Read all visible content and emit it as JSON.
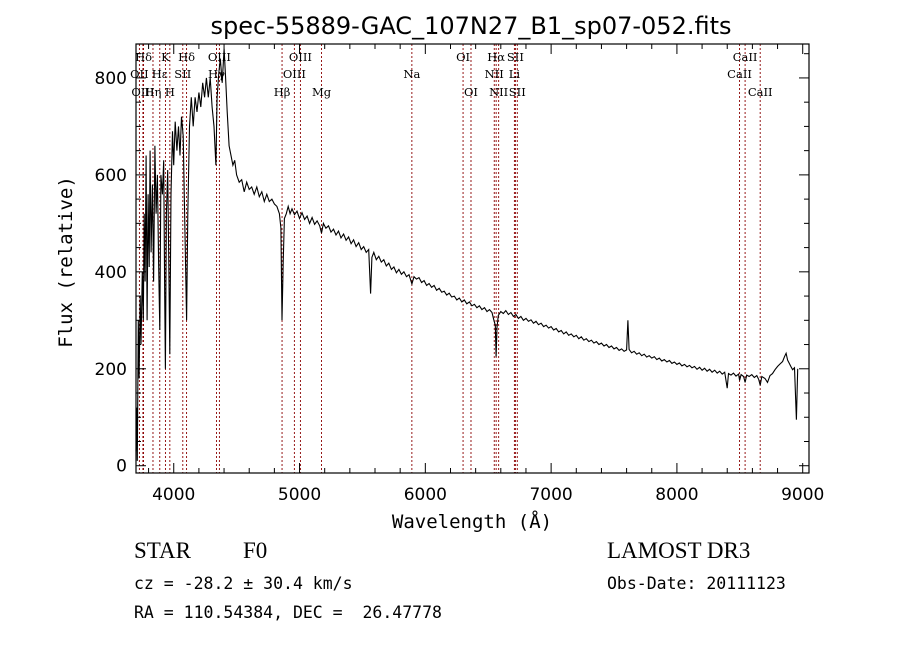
{
  "chart_data": {
    "type": "line",
    "title": "spec-55889-GAC_107N27_B1_sp07-052.fits",
    "xlabel": "Wavelength (Å)",
    "ylabel": "Flux (relative)",
    "xlim": [
      3700,
      9050
    ],
    "ylim": [
      -15,
      870
    ],
    "xticks": [
      4000,
      5000,
      6000,
      7000,
      8000,
      9000
    ],
    "yticks": [
      0,
      200,
      400,
      600,
      800
    ],
    "line_color": "#8b0000",
    "series_color": "#000000",
    "spectral_lines": [
      {
        "label": "Hδ",
        "wl": 3760,
        "row": 0
      },
      {
        "label": "OII",
        "wl": 3727,
        "row": 1
      },
      {
        "label": "OIII",
        "wl": 3755,
        "row": 2
      },
      {
        "label": "K",
        "wl": 3934,
        "row": 0
      },
      {
        "label": "Hε",
        "wl": 3889,
        "row": 1
      },
      {
        "label": "Hη",
        "wl": 3835,
        "row": 2
      },
      {
        "label": "Hδ",
        "wl": 4102,
        "row": 0
      },
      {
        "label": "SII",
        "wl": 4072,
        "row": 1
      },
      {
        "label": "H",
        "wl": 3969,
        "row": 2
      },
      {
        "label": "OIII",
        "wl": 4363,
        "row": 0
      },
      {
        "label": "Hγ",
        "wl": 4340,
        "row": 1
      },
      {
        "label": "OIII",
        "wl": 5007,
        "row": 0
      },
      {
        "label": "OIII",
        "wl": 4959,
        "row": 1
      },
      {
        "label": "Hβ",
        "wl": 4861,
        "row": 2
      },
      {
        "label": "Mg",
        "wl": 5175,
        "row": 2
      },
      {
        "label": "Na",
        "wl": 5893,
        "row": 1
      },
      {
        "label": "OI",
        "wl": 6300,
        "row": 0
      },
      {
        "label": "OI",
        "wl": 6363,
        "row": 2
      },
      {
        "label": "Hα",
        "wl": 6563,
        "row": 0
      },
      {
        "label": "NII",
        "wl": 6548,
        "row": 1
      },
      {
        "label": "NII",
        "wl": 6583,
        "row": 2
      },
      {
        "label": "SII",
        "wl": 6716,
        "row": 0
      },
      {
        "label": "Li",
        "wl": 6708,
        "row": 1
      },
      {
        "label": "SII",
        "wl": 6731,
        "row": 2
      },
      {
        "label": "CaII",
        "wl": 8542,
        "row": 0
      },
      {
        "label": "CaII",
        "wl": 8498,
        "row": 1
      },
      {
        "label": "CaII",
        "wl": 8662,
        "row": 2
      }
    ],
    "flux": [
      [
        3700,
        30
      ],
      [
        3705,
        120
      ],
      [
        3710,
        10
      ],
      [
        3718,
        300
      ],
      [
        3725,
        180
      ],
      [
        3733,
        350
      ],
      [
        3740,
        250
      ],
      [
        3750,
        400
      ],
      [
        3758,
        300
      ],
      [
        3765,
        520
      ],
      [
        3772,
        380
      ],
      [
        3780,
        640
      ],
      [
        3788,
        300
      ],
      [
        3796,
        560
      ],
      [
        3805,
        410
      ],
      [
        3812,
        650
      ],
      [
        3820,
        440
      ],
      [
        3830,
        580
      ],
      [
        3840,
        380
      ],
      [
        3850,
        660
      ],
      [
        3860,
        520
      ],
      [
        3870,
        600
      ],
      [
        3880,
        420
      ],
      [
        3889,
        280
      ],
      [
        3898,
        600
      ],
      [
        3910,
        560
      ],
      [
        3920,
        630
      ],
      [
        3928,
        350
      ],
      [
        3934,
        200
      ],
      [
        3942,
        520
      ],
      [
        3952,
        610
      ],
      [
        3962,
        380
      ],
      [
        3969,
        230
      ],
      [
        3978,
        560
      ],
      [
        3990,
        690
      ],
      [
        4000,
        620
      ],
      [
        4012,
        710
      ],
      [
        4025,
        650
      ],
      [
        4038,
        700
      ],
      [
        4050,
        640
      ],
      [
        4062,
        720
      ],
      [
        4075,
        680
      ],
      [
        4088,
        500
      ],
      [
        4102,
        300
      ],
      [
        4112,
        520
      ],
      [
        4125,
        700
      ],
      [
        4140,
        760
      ],
      [
        4155,
        700
      ],
      [
        4170,
        760
      ],
      [
        4185,
        730
      ],
      [
        4200,
        770
      ],
      [
        4215,
        740
      ],
      [
        4230,
        790
      ],
      [
        4245,
        760
      ],
      [
        4260,
        800
      ],
      [
        4275,
        760
      ],
      [
        4290,
        800
      ],
      [
        4305,
        740
      ],
      [
        4320,
        700
      ],
      [
        4335,
        620
      ],
      [
        4345,
        760
      ],
      [
        4358,
        810
      ],
      [
        4370,
        840
      ],
      [
        4385,
        790
      ],
      [
        4400,
        860
      ],
      [
        4412,
        800
      ],
      [
        4425,
        730
      ],
      [
        4440,
        660
      ],
      [
        4455,
        640
      ],
      [
        4470,
        620
      ],
      [
        4485,
        630
      ],
      [
        4500,
        600
      ],
      [
        4520,
        585
      ],
      [
        4540,
        590
      ],
      [
        4560,
        565
      ],
      [
        4580,
        585
      ],
      [
        4600,
        570
      ],
      [
        4620,
        575
      ],
      [
        4640,
        560
      ],
      [
        4660,
        575
      ],
      [
        4680,
        555
      ],
      [
        4700,
        565
      ],
      [
        4720,
        545
      ],
      [
        4740,
        560
      ],
      [
        4760,
        545
      ],
      [
        4780,
        550
      ],
      [
        4800,
        540
      ],
      [
        4820,
        535
      ],
      [
        4840,
        520
      ],
      [
        4852,
        490
      ],
      [
        4861,
        300
      ],
      [
        4870,
        420
      ],
      [
        4880,
        510
      ],
      [
        4895,
        520
      ],
      [
        4910,
        535
      ],
      [
        4925,
        520
      ],
      [
        4940,
        530
      ],
      [
        4960,
        518
      ],
      [
        4980,
        525
      ],
      [
        5000,
        510
      ],
      [
        5020,
        522
      ],
      [
        5040,
        508
      ],
      [
        5060,
        515
      ],
      [
        5080,
        500
      ],
      [
        5100,
        512
      ],
      [
        5120,
        498
      ],
      [
        5140,
        505
      ],
      [
        5160,
        495
      ],
      [
        5175,
        480
      ],
      [
        5190,
        500
      ],
      [
        5210,
        490
      ],
      [
        5230,
        495
      ],
      [
        5250,
        482
      ],
      [
        5270,
        488
      ],
      [
        5290,
        476
      ],
      [
        5310,
        484
      ],
      [
        5330,
        470
      ],
      [
        5350,
        478
      ],
      [
        5370,
        465
      ],
      [
        5390,
        472
      ],
      [
        5410,
        458
      ],
      [
        5430,
        466
      ],
      [
        5450,
        452
      ],
      [
        5470,
        460
      ],
      [
        5490,
        446
      ],
      [
        5510,
        452
      ],
      [
        5530,
        440
      ],
      [
        5550,
        446
      ],
      [
        5565,
        355
      ],
      [
        5575,
        430
      ],
      [
        5590,
        440
      ],
      [
        5610,
        425
      ],
      [
        5630,
        432
      ],
      [
        5650,
        420
      ],
      [
        5670,
        425
      ],
      [
        5690,
        412
      ],
      [
        5710,
        418
      ],
      [
        5730,
        405
      ],
      [
        5750,
        410
      ],
      [
        5770,
        398
      ],
      [
        5790,
        405
      ],
      [
        5810,
        395
      ],
      [
        5830,
        400
      ],
      [
        5850,
        390
      ],
      [
        5870,
        394
      ],
      [
        5893,
        375
      ],
      [
        5910,
        390
      ],
      [
        5930,
        385
      ],
      [
        5950,
        388
      ],
      [
        5970,
        378
      ],
      [
        5990,
        382
      ],
      [
        6010,
        372
      ],
      [
        6030,
        376
      ],
      [
        6050,
        368
      ],
      [
        6070,
        372
      ],
      [
        6090,
        362
      ],
      [
        6110,
        366
      ],
      [
        6130,
        358
      ],
      [
        6150,
        360
      ],
      [
        6170,
        352
      ],
      [
        6190,
        356
      ],
      [
        6210,
        348
      ],
      [
        6230,
        350
      ],
      [
        6250,
        342
      ],
      [
        6270,
        346
      ],
      [
        6290,
        338
      ],
      [
        6310,
        342
      ],
      [
        6330,
        334
      ],
      [
        6350,
        338
      ],
      [
        6370,
        330
      ],
      [
        6390,
        333
      ],
      [
        6410,
        326
      ],
      [
        6430,
        330
      ],
      [
        6450,
        322
      ],
      [
        6470,
        326
      ],
      [
        6490,
        318
      ],
      [
        6510,
        322
      ],
      [
        6530,
        316
      ],
      [
        6545,
        300
      ],
      [
        6556,
        290
      ],
      [
        6563,
        225
      ],
      [
        6570,
        285
      ],
      [
        6580,
        310
      ],
      [
        6600,
        318
      ],
      [
        6620,
        314
      ],
      [
        6640,
        320
      ],
      [
        6660,
        312
      ],
      [
        6680,
        316
      ],
      [
        6700,
        308
      ],
      [
        6720,
        312
      ],
      [
        6740,
        304
      ],
      [
        6760,
        308
      ],
      [
        6780,
        300
      ],
      [
        6800,
        304
      ],
      [
        6820,
        298
      ],
      [
        6840,
        301
      ],
      [
        6860,
        294
      ],
      [
        6880,
        298
      ],
      [
        6900,
        291
      ],
      [
        6920,
        294
      ],
      [
        6940,
        287
      ],
      [
        6960,
        290
      ],
      [
        6980,
        284
      ],
      [
        7000,
        287
      ],
      [
        7020,
        280
      ],
      [
        7040,
        283
      ],
      [
        7060,
        276
      ],
      [
        7080,
        279
      ],
      [
        7100,
        272
      ],
      [
        7120,
        276
      ],
      [
        7140,
        269
      ],
      [
        7160,
        272
      ],
      [
        7180,
        266
      ],
      [
        7200,
        269
      ],
      [
        7220,
        262
      ],
      [
        7240,
        266
      ],
      [
        7260,
        259
      ],
      [
        7280,
        262
      ],
      [
        7300,
        256
      ],
      [
        7320,
        259
      ],
      [
        7340,
        253
      ],
      [
        7360,
        256
      ],
      [
        7380,
        250
      ],
      [
        7400,
        253
      ],
      [
        7420,
        247
      ],
      [
        7440,
        250
      ],
      [
        7460,
        244
      ],
      [
        7480,
        247
      ],
      [
        7500,
        241
      ],
      [
        7520,
        244
      ],
      [
        7540,
        238
      ],
      [
        7560,
        241
      ],
      [
        7580,
        236
      ],
      [
        7600,
        239
      ],
      [
        7610,
        300
      ],
      [
        7620,
        240
      ],
      [
        7640,
        233
      ],
      [
        7660,
        236
      ],
      [
        7680,
        230
      ],
      [
        7700,
        233
      ],
      [
        7720,
        227
      ],
      [
        7740,
        230
      ],
      [
        7760,
        224
      ],
      [
        7780,
        227
      ],
      [
        7800,
        222
      ],
      [
        7820,
        225
      ],
      [
        7840,
        219
      ],
      [
        7860,
        222
      ],
      [
        7880,
        216
      ],
      [
        7900,
        219
      ],
      [
        7920,
        214
      ],
      [
        7940,
        217
      ],
      [
        7960,
        211
      ],
      [
        7980,
        214
      ],
      [
        8000,
        209
      ],
      [
        8020,
        212
      ],
      [
        8040,
        206
      ],
      [
        8060,
        209
      ],
      [
        8080,
        204
      ],
      [
        8100,
        207
      ],
      [
        8120,
        202
      ],
      [
        8140,
        205
      ],
      [
        8160,
        199
      ],
      [
        8180,
        203
      ],
      [
        8200,
        197
      ],
      [
        8220,
        201
      ],
      [
        8240,
        195
      ],
      [
        8260,
        199
      ],
      [
        8280,
        193
      ],
      [
        8300,
        197
      ],
      [
        8320,
        191
      ],
      [
        8340,
        195
      ],
      [
        8360,
        189
      ],
      [
        8380,
        193
      ],
      [
        8400,
        160
      ],
      [
        8410,
        190
      ],
      [
        8430,
        187
      ],
      [
        8450,
        191
      ],
      [
        8470,
        185
      ],
      [
        8490,
        189
      ],
      [
        8498,
        176
      ],
      [
        8510,
        188
      ],
      [
        8530,
        184
      ],
      [
        8542,
        172
      ],
      [
        8555,
        187
      ],
      [
        8575,
        184
      ],
      [
        8595,
        188
      ],
      [
        8615,
        182
      ],
      [
        8635,
        186
      ],
      [
        8650,
        178
      ],
      [
        8662,
        166
      ],
      [
        8675,
        184
      ],
      [
        8700,
        180
      ],
      [
        8720,
        172
      ],
      [
        8740,
        186
      ],
      [
        8760,
        190
      ],
      [
        8780,
        198
      ],
      [
        8800,
        205
      ],
      [
        8820,
        210
      ],
      [
        8840,
        215
      ],
      [
        8855,
        225
      ],
      [
        8868,
        232
      ],
      [
        8880,
        218
      ],
      [
        8892,
        212
      ],
      [
        8905,
        205
      ],
      [
        8920,
        198
      ],
      [
        8935,
        202
      ],
      [
        8950,
        95
      ],
      [
        8960,
        200
      ]
    ]
  },
  "info": {
    "object_class": "STAR",
    "subclass": "F0",
    "survey": "LAMOST DR3",
    "cz": "cz = -28.2 ± 30.4 km/s",
    "obs_date": "Obs-Date: 20111123",
    "coords": "RA = 110.54384, DEC =  26.47778"
  }
}
